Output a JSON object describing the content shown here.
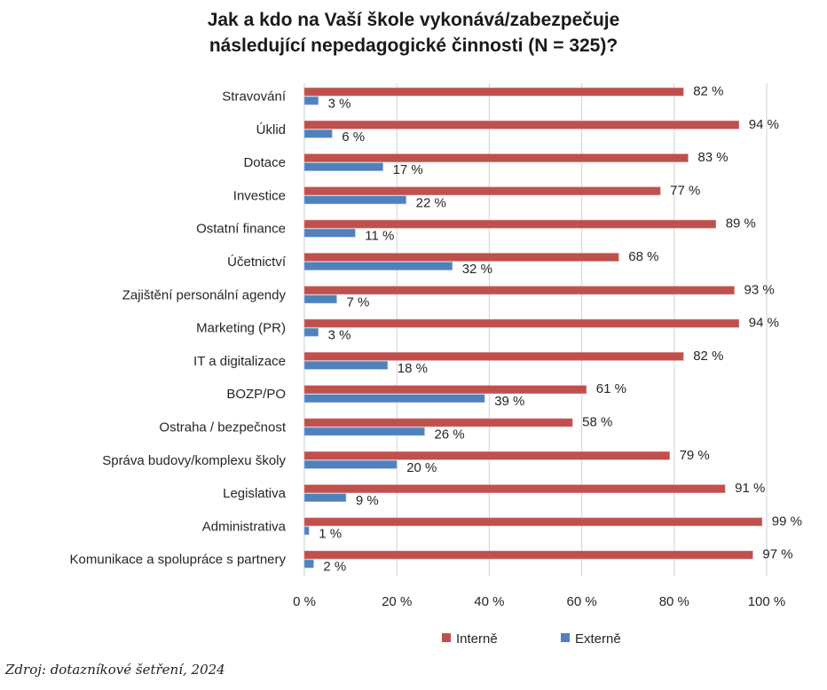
{
  "chart_data": {
    "type": "bar",
    "orientation": "horizontal",
    "title": "Jak a kdo na Vaší škole vykonává/zabezpečuje následující nepedagogické činnosti (N = 325)?",
    "title_lines": [
      "Jak a kdo na Vaší škole vykonává/zabezpečuje",
      "následující nepedagogické činnosti (N = 325)?"
    ],
    "xlabel": "",
    "ylabel": "",
    "xlim": [
      0,
      100
    ],
    "x_ticks": [
      0,
      20,
      40,
      60,
      80,
      100
    ],
    "x_tick_labels": [
      "0 %",
      "20 %",
      "40 %",
      "60 %",
      "80 %",
      "100 %"
    ],
    "grid": true,
    "legend_position": "bottom",
    "value_suffix": " %",
    "categories": [
      "Stravování",
      "Úklid",
      "Dotace",
      "Investice",
      "Ostatní finance",
      "Účetnictví",
      "Zajištění personální agendy",
      "Marketing (PR)",
      "IT a digitalizace",
      "BOZP/PO",
      "Ostraha / bezpečnost",
      "Správa budovy/komplexu školy",
      "Legislativa",
      "Administrativa",
      "Komunikace a spolupráce s partnery"
    ],
    "series": [
      {
        "name": "Interně",
        "color": "#C0504D",
        "values": [
          82,
          94,
          83,
          77,
          89,
          68,
          93,
          94,
          82,
          61,
          58,
          79,
          91,
          99,
          97
        ]
      },
      {
        "name": "Externě",
        "color": "#4F81BD",
        "values": [
          3,
          6,
          17,
          22,
          11,
          32,
          7,
          3,
          18,
          39,
          26,
          20,
          9,
          1,
          2
        ]
      }
    ]
  },
  "source_note": "Zdroj: dotazníkové šetření, 2024"
}
